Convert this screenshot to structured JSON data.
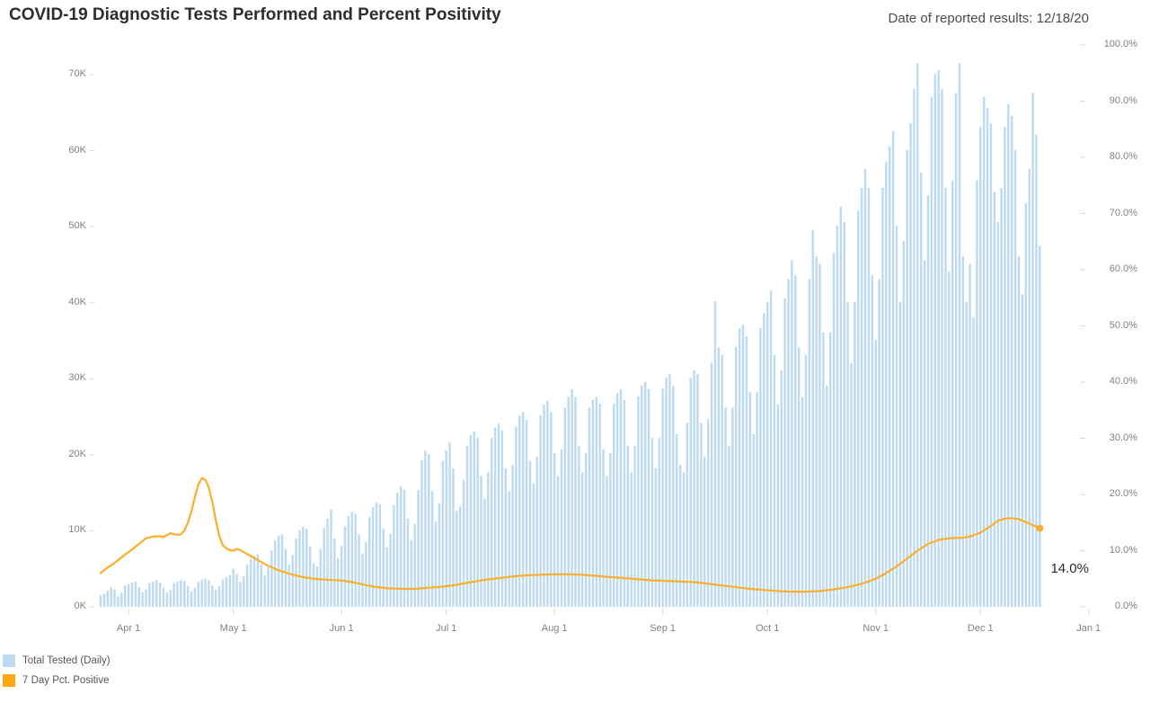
{
  "title": "COVID-19 Diagnostic Tests Performed and Percent Positivity",
  "subtitle": "Date of reported results: 12/18/20",
  "annotation": {
    "final_pct_label": "14.0%"
  },
  "legend": [
    {
      "label": "Total Tested (Daily)",
      "color": "#bcdaf1"
    },
    {
      "label": "7 Day Pct. Positive",
      "color": "#ffa90e"
    }
  ],
  "colors": {
    "bar": "#bcdaf1",
    "line": "#fcae2a",
    "dot": "#fcae2a",
    "tick": "#d9d9d9",
    "axis_text": "#818181",
    "title_text": "#2e2e2e",
    "annotation_text": "#2b2b2b",
    "background": "#ffffff"
  },
  "chart_data": {
    "type": "bar",
    "combo": "bar+line dual axis",
    "start_date": "2020-03-24",
    "end_date": "2020-12-18",
    "x_axis": {
      "tick_labels": [
        "Apr 1",
        "May 1",
        "Jun 1",
        "Jul 1",
        "Aug 1",
        "Sep 1",
        "Oct 1",
        "Nov 1",
        "Dec 1",
        "Jan 1"
      ],
      "tick_day_offsets": [
        8,
        38,
        69,
        99,
        130,
        161,
        191,
        222,
        252,
        283
      ]
    },
    "y_left_axis": {
      "title": "Total Tested (Daily)",
      "tick_labels": [
        "0K",
        "10K",
        "20K",
        "30K",
        "40K",
        "50K",
        "60K",
        "70K"
      ],
      "range_k": [
        0,
        74
      ]
    },
    "y_right_axis": {
      "title": "7 Day Pct. Positive",
      "tick_labels": [
        "0.0%",
        "10.0%",
        "20.0%",
        "30.0%",
        "40.0%",
        "50.0%",
        "60.0%",
        "70.0%",
        "80.0%",
        "90.0%",
        "100.0%"
      ],
      "range_pct": [
        0,
        100
      ]
    },
    "series": [
      {
        "name": "Total Tested (Daily)",
        "type": "bar",
        "unit": "thousands of tests per day",
        "values_k": [
          1.5,
          1.7,
          2.1,
          2.6,
          2.3,
          1.4,
          1.9,
          2.8,
          3.0,
          3.2,
          3.3,
          2.6,
          1.9,
          2.3,
          3.1,
          3.3,
          3.5,
          3.2,
          2.5,
          1.9,
          2.2,
          3.1,
          3.3,
          3.5,
          3.4,
          2.7,
          2.0,
          2.5,
          3.3,
          3.6,
          3.7,
          3.5,
          2.8,
          2.2,
          2.7,
          3.6,
          3.9,
          4.2,
          5.0,
          4.3,
          3.3,
          4.0,
          5.6,
          6.3,
          6.7,
          6.9,
          5.6,
          4.1,
          5.2,
          7.4,
          8.7,
          9.3,
          9.5,
          7.6,
          5.5,
          6.8,
          9.0,
          10.1,
          10.5,
          10.3,
          7.9,
          5.7,
          5.3,
          7.6,
          10.4,
          11.6,
          12.8,
          9.0,
          6.4,
          8.0,
          10.6,
          11.9,
          12.5,
          12.3,
          9.5,
          7.0,
          8.5,
          11.8,
          13.1,
          13.7,
          13.5,
          10.3,
          7.8,
          9.6,
          13.4,
          15.0,
          15.8,
          15.4,
          11.6,
          8.8,
          10.9,
          15.3,
          19.3,
          20.6,
          20.1,
          15.2,
          11.2,
          13.6,
          19.2,
          20.6,
          21.6,
          18.2,
          12.6,
          13.2,
          16.7,
          21.2,
          22.6,
          23.1,
          22.2,
          17.2,
          14.2,
          17.7,
          22.2,
          23.6,
          24.1,
          23.2,
          18.2,
          15.2,
          18.7,
          23.7,
          25.1,
          25.6,
          24.6,
          19.2,
          16.2,
          19.7,
          25.2,
          26.6,
          27.1,
          25.6,
          20.2,
          17.2,
          20.7,
          26.2,
          27.6,
          28.6,
          27.6,
          21.2,
          17.7,
          20.2,
          26.2,
          27.2,
          27.6,
          26.7,
          20.7,
          17.2,
          20.2,
          26.7,
          28.1,
          28.6,
          27.2,
          21.2,
          17.7,
          21.2,
          27.7,
          29.1,
          29.6,
          28.6,
          22.2,
          18.2,
          22.2,
          28.7,
          30.1,
          30.6,
          29.1,
          22.7,
          18.7,
          17.7,
          24.2,
          30.1,
          31.1,
          30.6,
          24.2,
          19.7,
          24.7,
          32.1,
          40.2,
          34.1,
          33.1,
          26.2,
          21.2,
          26.2,
          34.2,
          36.6,
          37.1,
          35.6,
          28.2,
          22.7,
          28.2,
          36.7,
          38.6,
          40.1,
          41.6,
          33.1,
          26.6,
          31.1,
          40.6,
          43.1,
          45.6,
          43.6,
          34.1,
          27.6,
          33.1,
          43.1,
          49.6,
          46.1,
          45.1,
          36.1,
          29.1,
          36.1,
          46.6,
          50.1,
          52.6,
          50.6,
          40.1,
          32.1,
          40.1,
          52.1,
          55.1,
          57.6,
          55.1,
          43.6,
          35.1,
          43.1,
          55.1,
          58.6,
          60.6,
          62.6,
          50.1,
          40.1,
          48.1,
          60.1,
          63.6,
          68.1,
          71.5,
          57.1,
          45.6,
          54.1,
          67.1,
          70.1,
          70.6,
          68.1,
          55.1,
          44.1,
          56.1,
          67.6,
          71.5,
          46.1,
          40.1,
          45.1,
          38.1,
          56.1,
          63.1,
          67.1,
          65.6,
          63.6,
          54.6,
          50.6,
          55.1,
          63.1,
          66.1,
          64.6,
          60.1,
          46.1,
          41.1,
          53.1,
          57.6,
          67.6,
          62.1,
          47.5
        ]
      },
      {
        "name": "7 Day Pct. Positive",
        "type": "line",
        "unit": "percent",
        "final_value_pct": 14.0,
        "anchors_day_pct": [
          [
            0,
            6.0
          ],
          [
            2,
            7.0
          ],
          [
            4,
            7.8
          ],
          [
            7,
            9.3
          ],
          [
            9,
            10.2
          ],
          [
            11,
            11.2
          ],
          [
            13,
            12.2
          ],
          [
            15,
            12.5
          ],
          [
            17,
            12.6
          ],
          [
            18,
            12.4
          ],
          [
            20,
            13.1
          ],
          [
            22,
            12.8
          ],
          [
            23,
            12.9
          ],
          [
            24,
            13.6
          ],
          [
            25,
            15.0
          ],
          [
            26,
            17.0
          ],
          [
            27,
            19.5
          ],
          [
            28,
            21.8
          ],
          [
            29,
            22.9
          ],
          [
            30,
            22.6
          ],
          [
            31,
            21.2
          ],
          [
            32,
            18.6
          ],
          [
            33,
            15.4
          ],
          [
            34,
            12.6
          ],
          [
            35,
            11.0
          ],
          [
            36,
            10.4
          ],
          [
            37,
            10.1
          ],
          [
            38,
            10.0
          ],
          [
            39,
            10.3
          ],
          [
            40,
            10.1
          ],
          [
            42,
            9.4
          ],
          [
            45,
            8.3
          ],
          [
            48,
            7.3
          ],
          [
            51,
            6.5
          ],
          [
            54,
            5.9
          ],
          [
            57,
            5.4
          ],
          [
            61,
            5.0
          ],
          [
            65,
            4.8
          ],
          [
            69,
            4.7
          ],
          [
            72,
            4.4
          ],
          [
            75,
            4.0
          ],
          [
            78,
            3.6
          ],
          [
            82,
            3.3
          ],
          [
            86,
            3.2
          ],
          [
            90,
            3.2
          ],
          [
            94,
            3.4
          ],
          [
            98,
            3.6
          ],
          [
            102,
            3.9
          ],
          [
            106,
            4.4
          ],
          [
            110,
            4.8
          ],
          [
            114,
            5.1
          ],
          [
            118,
            5.4
          ],
          [
            122,
            5.6
          ],
          [
            126,
            5.7
          ],
          [
            130,
            5.8
          ],
          [
            134,
            5.8
          ],
          [
            138,
            5.7
          ],
          [
            142,
            5.5
          ],
          [
            146,
            5.3
          ],
          [
            150,
            5.1
          ],
          [
            154,
            4.9
          ],
          [
            158,
            4.7
          ],
          [
            162,
            4.6
          ],
          [
            166,
            4.5
          ],
          [
            170,
            4.4
          ],
          [
            174,
            4.1
          ],
          [
            178,
            3.8
          ],
          [
            182,
            3.5
          ],
          [
            186,
            3.2
          ],
          [
            190,
            3.0
          ],
          [
            194,
            2.8
          ],
          [
            198,
            2.7
          ],
          [
            202,
            2.7
          ],
          [
            206,
            2.8
          ],
          [
            210,
            3.1
          ],
          [
            214,
            3.5
          ],
          [
            218,
            4.1
          ],
          [
            222,
            5.0
          ],
          [
            225,
            6.0
          ],
          [
            228,
            7.2
          ],
          [
            231,
            8.6
          ],
          [
            234,
            10.0
          ],
          [
            237,
            11.2
          ],
          [
            240,
            11.9
          ],
          [
            243,
            12.2
          ],
          [
            247,
            12.3
          ],
          [
            249,
            12.5
          ],
          [
            252,
            13.2
          ],
          [
            255,
            14.4
          ],
          [
            257,
            15.3
          ],
          [
            259,
            15.7
          ],
          [
            261,
            15.8
          ],
          [
            263,
            15.6
          ],
          [
            266,
            14.8
          ],
          [
            269,
            14.0
          ]
        ]
      }
    ]
  }
}
